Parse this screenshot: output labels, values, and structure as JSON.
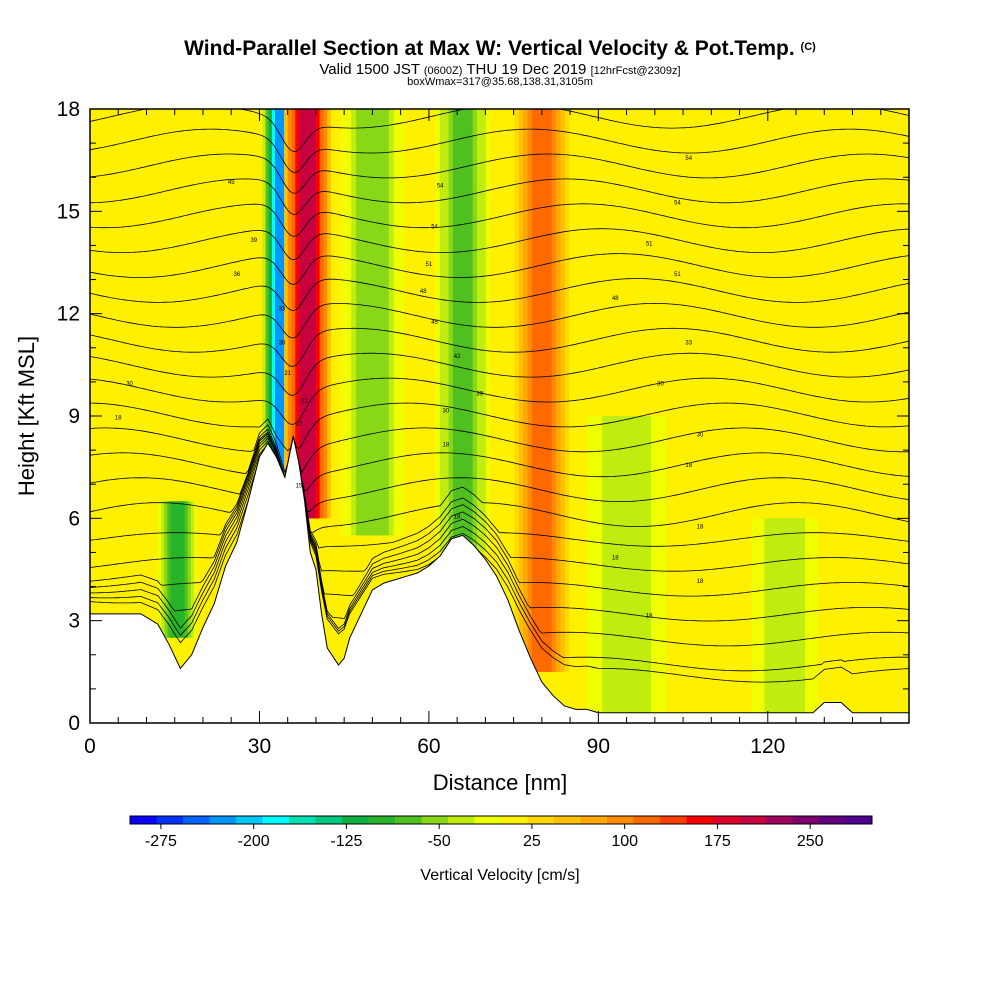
{
  "title": {
    "main": "Wind-Parallel Section at Max W: Vertical Velocity & Pot.Temp.",
    "copyright_mark": "(C)",
    "valid_prefix": "Valid 1500 JST",
    "utc_time": "(0600Z)",
    "valid_date": "THU 19 Dec 2019",
    "forecast_info": "[12hrFcst@2309z]",
    "box_info": "boxWmax=317@35.68,138.31,3105m"
  },
  "chart_data": {
    "type": "heatmap",
    "xlabel": "Distance [nm]",
    "ylabel": "Height [Kft MSL]",
    "xlim": [
      0,
      145
    ],
    "ylim": [
      0,
      18
    ],
    "x_ticks": [
      0,
      30,
      60,
      90,
      120
    ],
    "y_ticks": [
      0,
      3,
      6,
      9,
      12,
      15,
      18
    ],
    "colorbar": {
      "label": "Vertical Velocity [cm/s]",
      "min": -300,
      "max": 300,
      "tick_values": [
        -275,
        -200,
        -125,
        -50,
        25,
        100,
        175,
        250
      ],
      "tick_labels": [
        "-275",
        "-200",
        "-125",
        "-50",
        "25",
        "100",
        "175",
        "250"
      ],
      "colors": [
        "#0a00ff",
        "#0032ff",
        "#0064ff",
        "#0096ff",
        "#00c8ff",
        "#00ffff",
        "#00e0b0",
        "#00c880",
        "#10b040",
        "#28b428",
        "#50c020",
        "#88d818",
        "#c0ec10",
        "#f0ff00",
        "#fff000",
        "#ffd800",
        "#ffc000",
        "#ffa800",
        "#ff8c00",
        "#ff6a00",
        "#ff4000",
        "#ff0000",
        "#e0002a",
        "#c80040",
        "#a00060",
        "#800070",
        "#600080",
        "#500090"
      ]
    },
    "velocity_features": [
      {
        "kind": "downdraft",
        "x": 34,
        "x_width": 2.5,
        "z_min": 6.8,
        "z_max": 18,
        "w": -220
      },
      {
        "kind": "updraft",
        "x": 38.5,
        "x_width": 3.0,
        "z_min": 6.0,
        "z_max": 18,
        "w": 200
      },
      {
        "kind": "downdraft",
        "x": 50,
        "x_width": 4,
        "z_min": 5.5,
        "z_max": 18,
        "w": -60
      },
      {
        "kind": "downdraft",
        "x": 66,
        "x_width": 3.5,
        "z_min": 5,
        "z_max": 18,
        "w": -70
      },
      {
        "kind": "updraft",
        "x": 80,
        "x_width": 3.5,
        "z_min": 1.5,
        "z_max": 18,
        "w": 110
      },
      {
        "kind": "downdraft",
        "x": 15.5,
        "x_width": 2.5,
        "z_min": 2.5,
        "z_max": 6.5,
        "w": -90
      },
      {
        "kind": "downdraft",
        "x": 95,
        "x_width": 6,
        "z_min": 0.3,
        "z_max": 9,
        "w": -35
      },
      {
        "kind": "downdraft",
        "x": 123,
        "x_width": 5,
        "z_min": 0.3,
        "z_max": 6,
        "w": -35
      }
    ],
    "terrain_profile": {
      "x": [
        0,
        5,
        9,
        12,
        14,
        16,
        18,
        20,
        22,
        24,
        26,
        28,
        30,
        31.5,
        33,
        34.5,
        36,
        37,
        38,
        39,
        40,
        41,
        42,
        44,
        45,
        46,
        48,
        50,
        52,
        54,
        56,
        58,
        60,
        62,
        64,
        66,
        68,
        70,
        72,
        74,
        76,
        78,
        80,
        82,
        84,
        86,
        88,
        90,
        100,
        110,
        120,
        125,
        128,
        130,
        133,
        135,
        145
      ],
      "z": [
        3.2,
        3.2,
        3.2,
        2.9,
        2.3,
        1.6,
        2.0,
        2.8,
        3.5,
        4.6,
        5.3,
        6.5,
        7.8,
        8.2,
        7.8,
        7.2,
        8.4,
        7.6,
        6.5,
        5.0,
        4.5,
        3.2,
        2.2,
        1.7,
        1.9,
        2.5,
        3.2,
        3.9,
        4.1,
        4.2,
        4.3,
        4.4,
        4.6,
        4.9,
        5.4,
        5.5,
        5.2,
        4.8,
        4.3,
        3.6,
        2.7,
        1.9,
        1.2,
        0.8,
        0.5,
        0.4,
        0.4,
        0.3,
        0.3,
        0.3,
        0.3,
        0.3,
        0.3,
        0.6,
        0.6,
        0.3,
        0.3
      ]
    },
    "theta_contours": {
      "count": 24,
      "labels": [
        {
          "x": 5,
          "z": 8.9,
          "text": "18"
        },
        {
          "x": 7,
          "z": 9.9,
          "text": "30"
        },
        {
          "x": 25,
          "z": 15.8,
          "text": "45"
        },
        {
          "x": 29,
          "z": 14.1,
          "text": "39"
        },
        {
          "x": 26,
          "z": 13.1,
          "text": "36"
        },
        {
          "x": 34,
          "z": 12.1,
          "text": "33"
        },
        {
          "x": 34,
          "z": 11.1,
          "text": "30"
        },
        {
          "x": 35,
          "z": 10.2,
          "text": "21"
        },
        {
          "x": 38,
          "z": 9.4,
          "text": "21"
        },
        {
          "x": 37,
          "z": 8.7,
          "text": "27"
        },
        {
          "x": 37,
          "z": 6.9,
          "text": "15"
        },
        {
          "x": 62,
          "z": 15.7,
          "text": "54"
        },
        {
          "x": 61,
          "z": 14.5,
          "text": "54"
        },
        {
          "x": 60,
          "z": 13.4,
          "text": "51"
        },
        {
          "x": 59,
          "z": 12.6,
          "text": "48"
        },
        {
          "x": 61,
          "z": 11.7,
          "text": "45"
        },
        {
          "x": 65,
          "z": 10.7,
          "text": "42"
        },
        {
          "x": 69,
          "z": 9.6,
          "text": "39"
        },
        {
          "x": 63,
          "z": 9.1,
          "text": "30"
        },
        {
          "x": 63,
          "z": 8.1,
          "text": "18"
        },
        {
          "x": 65,
          "z": 6.0,
          "text": "18"
        },
        {
          "x": 106,
          "z": 16.5,
          "text": "54"
        },
        {
          "x": 104,
          "z": 15.2,
          "text": "54"
        },
        {
          "x": 99,
          "z": 14.0,
          "text": "51"
        },
        {
          "x": 104,
          "z": 13.1,
          "text": "51"
        },
        {
          "x": 93,
          "z": 12.4,
          "text": "48"
        },
        {
          "x": 106,
          "z": 11.1,
          "text": "33"
        },
        {
          "x": 101,
          "z": 9.9,
          "text": "30"
        },
        {
          "x": 108,
          "z": 8.4,
          "text": "30"
        },
        {
          "x": 106,
          "z": 7.5,
          "text": "18"
        },
        {
          "x": 108,
          "z": 5.7,
          "text": "18"
        },
        {
          "x": 93,
          "z": 4.8,
          "text": "18"
        },
        {
          "x": 108,
          "z": 4.1,
          "text": "18"
        },
        {
          "x": 99,
          "z": 3.1,
          "text": "18"
        }
      ]
    }
  }
}
